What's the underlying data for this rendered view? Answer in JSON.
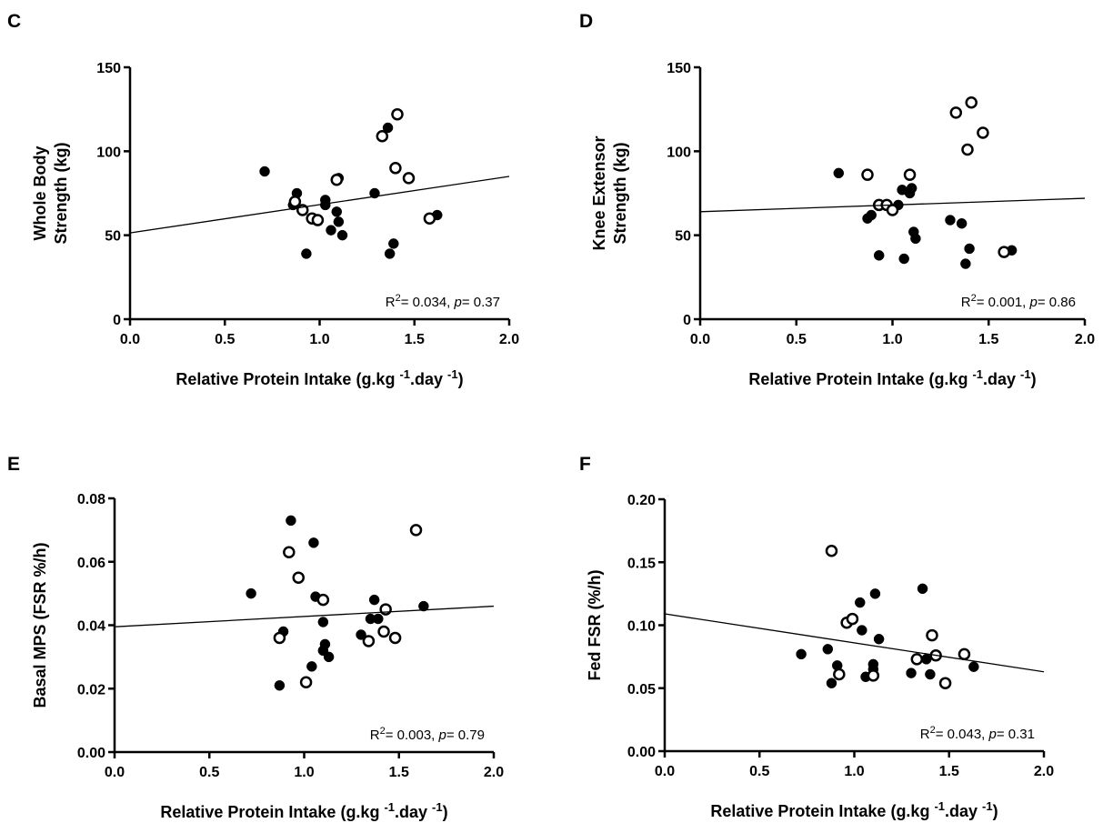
{
  "chart_data": [
    {
      "type": "scatter",
      "panel": "C",
      "y_label": [
        "Whole Body",
        "Strength (kg)"
      ],
      "x_label": [
        "Relative Protein Intake (g.kg ",
        "-1",
        ".day ",
        "-1",
        ")"
      ],
      "annotation": [
        "R",
        "2",
        "= 0.034, ",
        "p",
        "= 0.37"
      ],
      "xlim": [
        0,
        2
      ],
      "xticks": [
        {
          "value": 0,
          "label": "0.0"
        },
        {
          "value": 0.5,
          "label": "0.5"
        },
        {
          "value": 1,
          "label": "1.0"
        },
        {
          "value": 1.5,
          "label": "1.5"
        },
        {
          "value": 2,
          "label": "2.0"
        }
      ],
      "ylim": [
        0,
        150
      ],
      "yticks": [
        0,
        50,
        100,
        150
      ],
      "series": [
        {
          "marker": "filled",
          "color": "#000000",
          "x": [
            0.71,
            0.88,
            0.86,
            1.03,
            1.03,
            1.09,
            1.1,
            1.1,
            1.12,
            1.06,
            0.93,
            1.29,
            1.36,
            1.37,
            1.39,
            1.62
          ],
          "values": [
            88,
            75,
            68,
            71,
            68,
            64,
            84,
            58,
            50,
            53,
            39,
            75,
            114,
            39,
            45,
            62
          ]
        },
        {
          "marker": "open",
          "color": "#000000",
          "x": [
            0.87,
            0.91,
            0.96,
            0.99,
            1.09,
            1.33,
            1.41,
            1.4,
            1.47,
            1.58
          ],
          "values": [
            70,
            65,
            60,
            59,
            83,
            109,
            122,
            90,
            84,
            60
          ]
        },
        {
          "type": "line",
          "color": "#000000",
          "x": [
            0,
            2
          ],
          "values": [
            51.4,
            85
          ]
        }
      ]
    },
    {
      "type": "scatter",
      "panel": "D",
      "y_label": [
        "Knee Extensor",
        "Strength (kg)"
      ],
      "x_label": [
        "Relative Protein Intake (g.kg ",
        "-1",
        ".day ",
        "-1",
        ")"
      ],
      "annotation": [
        "R",
        "2",
        "= 0.001, ",
        "p",
        "= 0.86"
      ],
      "xlim": [
        0,
        2
      ],
      "xticks": [
        {
          "value": 0,
          "label": "0.0"
        },
        {
          "value": 0.5,
          "label": "0.5"
        },
        {
          "value": 1,
          "label": "1.0"
        },
        {
          "value": 1.5,
          "label": "1.5"
        },
        {
          "value": 2,
          "label": "2.0"
        }
      ],
      "ylim": [
        0,
        150
      ],
      "yticks": [
        0,
        50,
        100,
        150
      ],
      "series": [
        {
          "marker": "filled",
          "color": "#000000",
          "x": [
            0.72,
            0.87,
            0.89,
            0.93,
            1.03,
            1.05,
            1.09,
            1.1,
            1.11,
            1.12,
            1.06,
            1.3,
            1.36,
            1.38,
            1.4,
            1.62
          ],
          "values": [
            87,
            60,
            62,
            38,
            68,
            77,
            75,
            78,
            52,
            48,
            36,
            59,
            57,
            33,
            42,
            41
          ]
        },
        {
          "marker": "open",
          "color": "#000000",
          "x": [
            0.87,
            0.93,
            0.97,
            1.0,
            1.09,
            1.33,
            1.41,
            1.39,
            1.47,
            1.58
          ],
          "values": [
            86,
            68,
            68,
            65,
            86,
            123,
            129,
            101,
            111,
            40
          ]
        },
        {
          "type": "line",
          "color": "#000000",
          "x": [
            0,
            2
          ],
          "values": [
            64,
            72
          ]
        }
      ]
    },
    {
      "type": "scatter",
      "panel": "E",
      "y_label": [
        "Basal MPS (FSR %/h)"
      ],
      "x_label": [
        "Relative Protein Intake (g.kg ",
        "-1",
        ".day ",
        "-1",
        ")"
      ],
      "annotation": [
        "R",
        "2",
        "= 0.003, ",
        "p",
        "= 0.79"
      ],
      "xlim": [
        0,
        2
      ],
      "xticks": [
        {
          "value": 0,
          "label": "0.0"
        },
        {
          "value": 0.5,
          "label": "0.5"
        },
        {
          "value": 1,
          "label": "1.0"
        },
        {
          "value": 1.5,
          "label": "1.5"
        },
        {
          "value": 2,
          "label": "2.0"
        }
      ],
      "ylim": [
        0,
        0.08
      ],
      "yticks": [
        {
          "value": 0,
          "label": "0.00"
        },
        {
          "value": 0.02,
          "label": "0.02"
        },
        {
          "value": 0.04,
          "label": "0.04"
        },
        {
          "value": 0.06,
          "label": "0.06"
        },
        {
          "value": 0.08,
          "label": "0.08"
        }
      ],
      "series": [
        {
          "marker": "filled",
          "color": "#000000",
          "x": [
            0.72,
            0.87,
            0.89,
            0.93,
            1.05,
            1.06,
            1.04,
            1.1,
            1.1,
            1.11,
            1.13,
            1.3,
            1.35,
            1.37,
            1.39,
            1.63
          ],
          "values": [
            0.05,
            0.021,
            0.038,
            0.073,
            0.066,
            0.049,
            0.027,
            0.032,
            0.041,
            0.034,
            0.03,
            0.037,
            0.042,
            0.048,
            0.042,
            0.046
          ]
        },
        {
          "marker": "open",
          "color": "#000000",
          "x": [
            0.87,
            0.92,
            0.97,
            1.01,
            1.1,
            1.34,
            1.42,
            1.43,
            1.48,
            1.59
          ],
          "values": [
            0.036,
            0.063,
            0.055,
            0.022,
            0.048,
            0.035,
            0.038,
            0.045,
            0.036,
            0.07
          ]
        },
        {
          "type": "line",
          "color": "#000000",
          "x": [
            0,
            2
          ],
          "values": [
            0.0395,
            0.046
          ]
        }
      ]
    },
    {
      "type": "scatter",
      "panel": "F",
      "y_label": [
        "Fed FSR (%/h)"
      ],
      "x_label": [
        "Relative Protein Intake (g.kg ",
        "-1",
        ".day ",
        "-1",
        ")"
      ],
      "annotation": [
        "R",
        "2",
        "= 0.043, ",
        "p",
        "= 0.31"
      ],
      "xlim": [
        0,
        2
      ],
      "xticks": [
        {
          "value": 0,
          "label": "0.0"
        },
        {
          "value": 0.5,
          "label": "0.5"
        },
        {
          "value": 1,
          "label": "1.0"
        },
        {
          "value": 1.5,
          "label": "1.5"
        },
        {
          "value": 2,
          "label": "2.0"
        }
      ],
      "ylim": [
        0,
        0.2
      ],
      "yticks": [
        {
          "value": 0,
          "label": "0.00"
        },
        {
          "value": 0.05,
          "label": "0.05"
        },
        {
          "value": 0.1,
          "label": "0.10"
        },
        {
          "value": 0.15,
          "label": "0.15"
        },
        {
          "value": 0.2,
          "label": "0.20"
        }
      ],
      "series": [
        {
          "marker": "filled",
          "color": "#000000",
          "x": [
            0.72,
            0.86,
            0.88,
            0.91,
            1.03,
            1.04,
            1.06,
            1.1,
            1.1,
            1.11,
            1.13,
            1.3,
            1.36,
            1.38,
            1.4,
            1.63
          ],
          "values": [
            0.077,
            0.081,
            0.054,
            0.068,
            0.118,
            0.096,
            0.059,
            0.065,
            0.069,
            0.125,
            0.089,
            0.062,
            0.129,
            0.073,
            0.061,
            0.067
          ]
        },
        {
          "marker": "open",
          "color": "#000000",
          "x": [
            0.88,
            0.92,
            0.96,
            0.99,
            1.1,
            1.33,
            1.41,
            1.43,
            1.58,
            1.48
          ],
          "values": [
            0.159,
            0.061,
            0.102,
            0.105,
            0.06,
            0.073,
            0.092,
            0.076,
            0.077,
            0.054
          ]
        },
        {
          "type": "line",
          "color": "#000000",
          "x": [
            0,
            2
          ],
          "values": [
            0.109,
            0.063
          ]
        }
      ]
    }
  ]
}
